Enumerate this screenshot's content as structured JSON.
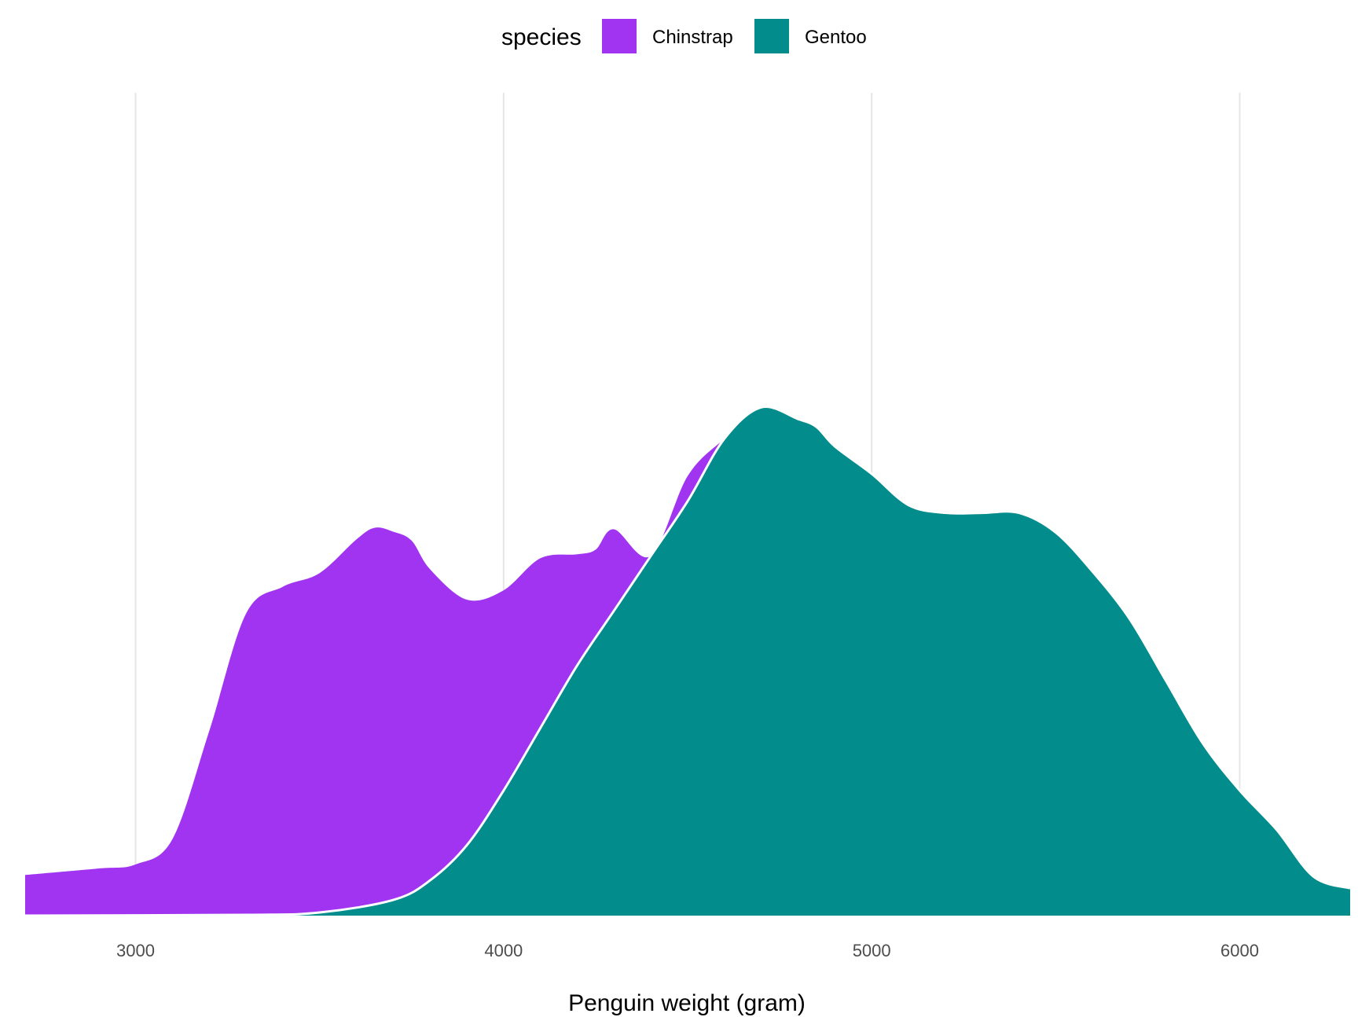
{
  "chart_data": {
    "type": "area",
    "subtype": "density",
    "position": "stack",
    "xlabel": "Penguin weight (gram)",
    "ylabel": "",
    "xlim": [
      2700,
      6300
    ],
    "ylim": [
      0,
      1
    ],
    "x_ticks": [
      3000,
      4000,
      5000,
      6000
    ],
    "x_tick_labels": [
      "3000",
      "4000",
      "5000",
      "6000"
    ],
    "grid": {
      "vertical_major": true,
      "horizontal": false
    },
    "legend": {
      "title": "species",
      "position": "top"
    },
    "outline_color": "#ffffff",
    "series": [
      {
        "name": "Gentoo",
        "color": "#038C8C",
        "x": [
          2700,
          3300,
          3500,
          3700,
          3800,
          3900,
          4000,
          4100,
          4200,
          4300,
          4400,
          4500,
          4600,
          4700,
          4800,
          4850,
          4900,
          5000,
          5100,
          5200,
          5300,
          5400,
          5500,
          5600,
          5700,
          5800,
          5900,
          6000,
          6100,
          6200,
          6300
        ],
        "y": [
          0,
          0.001,
          0.004,
          0.02,
          0.045,
          0.09,
          0.16,
          0.24,
          0.32,
          0.39,
          0.46,
          0.53,
          0.61,
          0.65,
          0.635,
          0.625,
          0.6,
          0.565,
          0.525,
          0.515,
          0.515,
          0.515,
          0.49,
          0.44,
          0.38,
          0.3,
          0.22,
          0.16,
          0.11,
          0.05,
          0.035
        ]
      },
      {
        "name": "Chinstrap",
        "color": "#A034F0",
        "x": [
          2700,
          2900,
          3000,
          3100,
          3200,
          3300,
          3400,
          3500,
          3600,
          3650,
          3700,
          3750,
          3800,
          3900,
          4000,
          4100,
          4200,
          4250,
          4300,
          4400,
          4500,
          4600,
          4700,
          4800,
          4850,
          4900,
          5000,
          5100,
          5200,
          5300,
          5400,
          5500,
          5600,
          5700,
          5800,
          5900,
          6000,
          6100,
          6200,
          6300
        ],
        "y": [
          0.052,
          0.06,
          0.065,
          0.097,
          0.235,
          0.385,
          0.418,
          0.434,
          0.469,
          0.48,
          0.471,
          0.447,
          0.398,
          0.314,
          0.256,
          0.217,
          0.142,
          0.113,
          0.104,
          0.0,
          0.032,
          0.0,
          0.0,
          0.0,
          0.0,
          0.0,
          0.0,
          0.0,
          0.0,
          0.0,
          0.0,
          0.0,
          0.0,
          0.0,
          0.0,
          0.0,
          0.0,
          0.0,
          0.0,
          0.0
        ]
      }
    ]
  }
}
